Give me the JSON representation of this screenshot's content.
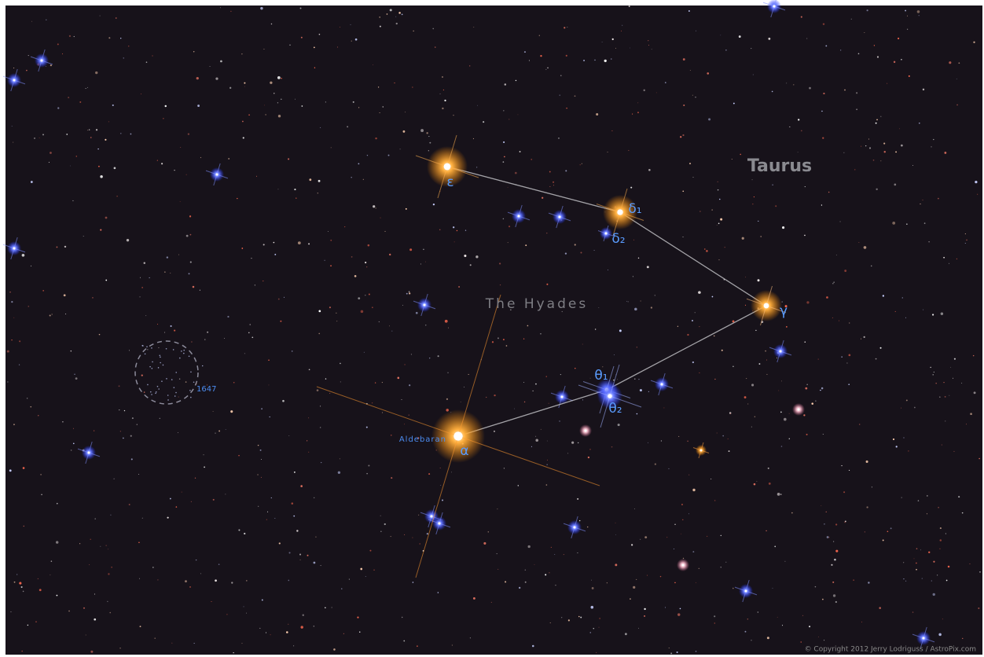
{
  "constellation": "Taurus",
  "cluster": "The Hyades",
  "stars": [
    {
      "label": "ε"
    },
    {
      "label": "δ₁"
    },
    {
      "label": "δ₂"
    },
    {
      "label": "γ"
    },
    {
      "label": "θ₁"
    },
    {
      "label": "θ₂"
    },
    {
      "label": "α",
      "name": "Aldebaran"
    }
  ],
  "open_cluster": "1647",
  "copyright": "© Copyright 2012 Jerry Lodriguss / AstroPix.com"
}
